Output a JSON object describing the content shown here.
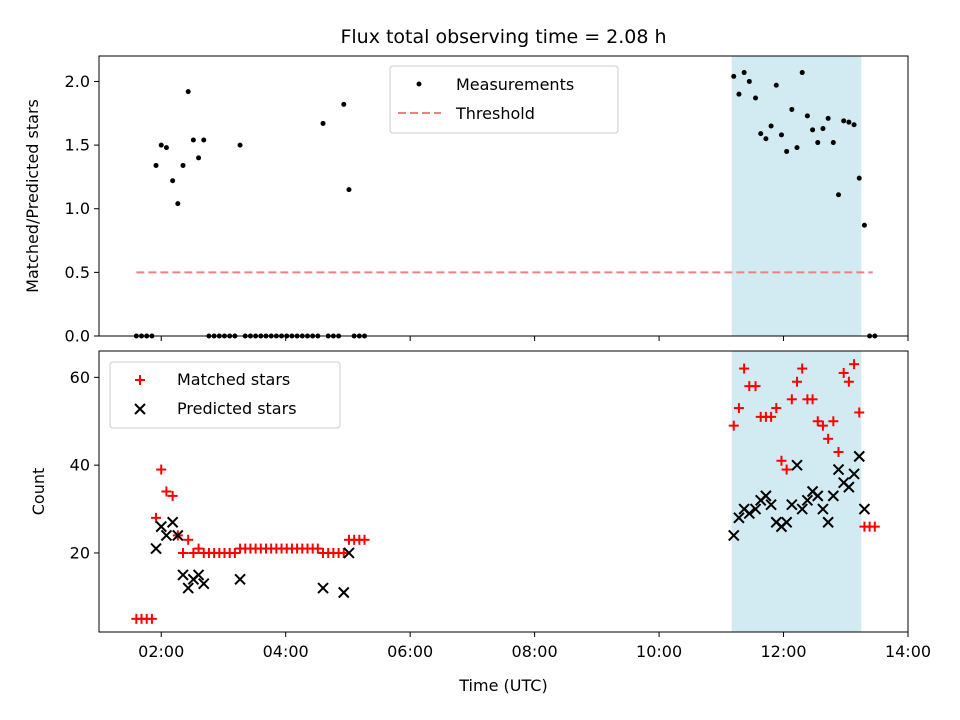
{
  "chart_data": [
    {
      "type": "scatter",
      "title": "Flux total observing time = 2.08 h",
      "ylabel": "Matched/Predicted stars",
      "xlabel": "",
      "xlim": [
        "01:00",
        "14:00"
      ],
      "ylim": [
        0,
        2.2
      ],
      "yticks": [
        0.0,
        0.5,
        1.0,
        1.5,
        2.0
      ],
      "ytick_labels": [
        "0.0",
        "0.5",
        "1.0",
        "1.5",
        "2.0"
      ],
      "legend_position": "top-center",
      "highlight_span": {
        "x": [
          "11:10",
          "13:15"
        ],
        "color": "#add8e6"
      },
      "series": [
        {
          "name": "Measurements",
          "marker": "dot",
          "color": "#000000",
          "points": [
            [
              "01:36",
              0
            ],
            [
              "01:41",
              0
            ],
            [
              "01:46",
              0
            ],
            [
              "01:51",
              0
            ],
            [
              "01:55",
              1.34
            ],
            [
              "02:00",
              1.5
            ],
            [
              "02:05",
              1.48
            ],
            [
              "02:11",
              1.22
            ],
            [
              "02:16",
              1.04
            ],
            [
              "02:21",
              1.34
            ],
            [
              "02:26",
              1.92
            ],
            [
              "02:31",
              1.54
            ],
            [
              "02:36",
              1.4
            ],
            [
              "02:41",
              1.54
            ],
            [
              "02:46",
              0
            ],
            [
              "02:51",
              0
            ],
            [
              "02:56",
              0
            ],
            [
              "03:01",
              0
            ],
            [
              "03:06",
              0
            ],
            [
              "03:11",
              0
            ],
            [
              "03:16",
              1.5
            ],
            [
              "03:21",
              0
            ],
            [
              "03:26",
              0
            ],
            [
              "03:31",
              0
            ],
            [
              "03:36",
              0
            ],
            [
              "03:41",
              0
            ],
            [
              "03:46",
              0
            ],
            [
              "03:51",
              0
            ],
            [
              "03:56",
              0
            ],
            [
              "04:01",
              0
            ],
            [
              "04:06",
              0
            ],
            [
              "04:11",
              0
            ],
            [
              "04:16",
              0
            ],
            [
              "04:21",
              0
            ],
            [
              "04:26",
              0
            ],
            [
              "04:31",
              0
            ],
            [
              "04:36",
              1.67
            ],
            [
              "04:41",
              0
            ],
            [
              "04:46",
              0
            ],
            [
              "04:51",
              0
            ],
            [
              "04:56",
              1.82
            ],
            [
              "05:01",
              1.15
            ],
            [
              "05:06",
              0
            ],
            [
              "05:11",
              0
            ],
            [
              "05:16",
              0
            ],
            [
              "11:12",
              2.04
            ],
            [
              "11:17",
              1.9
            ],
            [
              "11:22",
              2.07
            ],
            [
              "11:27",
              2.0
            ],
            [
              "11:33",
              1.87
            ],
            [
              "11:38",
              1.59
            ],
            [
              "11:43",
              1.55
            ],
            [
              "11:48",
              1.65
            ],
            [
              "11:53",
              1.97
            ],
            [
              "11:58",
              1.58
            ],
            [
              "12:03",
              1.45
            ],
            [
              "12:08",
              1.78
            ],
            [
              "12:13",
              1.48
            ],
            [
              "12:18",
              2.07
            ],
            [
              "12:23",
              1.73
            ],
            [
              "12:28",
              1.62
            ],
            [
              "12:33",
              1.52
            ],
            [
              "12:38",
              1.63
            ],
            [
              "12:43",
              1.71
            ],
            [
              "12:48",
              1.52
            ],
            [
              "12:53",
              1.11
            ],
            [
              "12:58",
              1.69
            ],
            [
              "13:03",
              1.68
            ],
            [
              "13:08",
              1.66
            ],
            [
              "13:13",
              1.24
            ],
            [
              "13:18",
              0.87
            ],
            [
              "13:23",
              0
            ],
            [
              "13:28",
              0
            ]
          ]
        },
        {
          "name": "Threshold",
          "line": "dashed",
          "color": "#f08080",
          "points": [
            [
              "01:36",
              0.5
            ],
            [
              "13:26",
              0.5
            ]
          ]
        }
      ]
    },
    {
      "type": "scatter",
      "title": "",
      "ylabel": "Count",
      "xlabel": "Time (UTC)",
      "xlim": [
        "01:00",
        "14:00"
      ],
      "xticks": [
        "02:00",
        "04:00",
        "06:00",
        "08:00",
        "10:00",
        "12:00",
        "14:00"
      ],
      "ylim": [
        2,
        66
      ],
      "yticks": [
        20,
        40,
        60
      ],
      "ytick_labels": [
        "20",
        "40",
        "60"
      ],
      "legend_position": "top-left",
      "highlight_span": {
        "x": [
          "11:10",
          "13:15"
        ],
        "color": "#add8e6"
      },
      "series": [
        {
          "name": "Matched stars",
          "marker": "plus",
          "color": "#ff0000",
          "points": [
            [
              "01:36",
              5
            ],
            [
              "01:41",
              5
            ],
            [
              "01:46",
              5
            ],
            [
              "01:51",
              5
            ],
            [
              "01:55",
              28
            ],
            [
              "02:00",
              39
            ],
            [
              "02:05",
              34
            ],
            [
              "02:11",
              33
            ],
            [
              "02:16",
              24
            ],
            [
              "02:21",
              20
            ],
            [
              "02:26",
              23
            ],
            [
              "02:31",
              20
            ],
            [
              "02:36",
              21
            ],
            [
              "02:41",
              20
            ],
            [
              "02:46",
              20
            ],
            [
              "02:51",
              20
            ],
            [
              "02:56",
              20
            ],
            [
              "03:01",
              20
            ],
            [
              "03:06",
              20
            ],
            [
              "03:11",
              20
            ],
            [
              "03:16",
              21
            ],
            [
              "03:21",
              21
            ],
            [
              "03:26",
              21
            ],
            [
              "03:31",
              21
            ],
            [
              "03:36",
              21
            ],
            [
              "03:41",
              21
            ],
            [
              "03:46",
              21
            ],
            [
              "03:51",
              21
            ],
            [
              "03:56",
              21
            ],
            [
              "04:01",
              21
            ],
            [
              "04:06",
              21
            ],
            [
              "04:11",
              21
            ],
            [
              "04:16",
              21
            ],
            [
              "04:21",
              21
            ],
            [
              "04:26",
              21
            ],
            [
              "04:31",
              21
            ],
            [
              "04:36",
              20
            ],
            [
              "04:41",
              20
            ],
            [
              "04:46",
              20
            ],
            [
              "04:51",
              20
            ],
            [
              "04:56",
              20
            ],
            [
              "05:01",
              23
            ],
            [
              "05:06",
              23
            ],
            [
              "05:11",
              23
            ],
            [
              "05:16",
              23
            ],
            [
              "11:12",
              49
            ],
            [
              "11:17",
              53
            ],
            [
              "11:22",
              62
            ],
            [
              "11:27",
              58
            ],
            [
              "11:33",
              58
            ],
            [
              "11:38",
              51
            ],
            [
              "11:43",
              51
            ],
            [
              "11:48",
              51
            ],
            [
              "11:53",
              53
            ],
            [
              "11:58",
              41
            ],
            [
              "12:03",
              39
            ],
            [
              "12:08",
              55
            ],
            [
              "12:13",
              59
            ],
            [
              "12:18",
              62
            ],
            [
              "12:23",
              55
            ],
            [
              "12:28",
              55
            ],
            [
              "12:33",
              50
            ],
            [
              "12:38",
              49
            ],
            [
              "12:43",
              46
            ],
            [
              "12:48",
              50
            ],
            [
              "12:53",
              43
            ],
            [
              "12:58",
              61
            ],
            [
              "13:03",
              59
            ],
            [
              "13:08",
              63
            ],
            [
              "13:13",
              52
            ],
            [
              "13:18",
              26
            ],
            [
              "13:23",
              26
            ],
            [
              "13:28",
              26
            ]
          ]
        },
        {
          "name": "Predicted stars",
          "marker": "x",
          "color": "#000000",
          "points": [
            [
              "01:55",
              21
            ],
            [
              "02:00",
              26
            ],
            [
              "02:05",
              24
            ],
            [
              "02:11",
              27
            ],
            [
              "02:16",
              24
            ],
            [
              "02:21",
              15
            ],
            [
              "02:26",
              12
            ],
            [
              "02:31",
              14
            ],
            [
              "02:36",
              15
            ],
            [
              "02:41",
              13
            ],
            [
              "03:16",
              14
            ],
            [
              "04:36",
              12
            ],
            [
              "04:56",
              11
            ],
            [
              "05:01",
              20
            ],
            [
              "11:12",
              24
            ],
            [
              "11:17",
              28
            ],
            [
              "11:22",
              30
            ],
            [
              "11:27",
              29
            ],
            [
              "11:33",
              30
            ],
            [
              "11:38",
              32
            ],
            [
              "11:43",
              33
            ],
            [
              "11:48",
              31
            ],
            [
              "11:53",
              27
            ],
            [
              "11:58",
              26
            ],
            [
              "12:03",
              27
            ],
            [
              "12:08",
              31
            ],
            [
              "12:13",
              40
            ],
            [
              "12:18",
              30
            ],
            [
              "12:23",
              32
            ],
            [
              "12:28",
              34
            ],
            [
              "12:33",
              33
            ],
            [
              "12:38",
              30
            ],
            [
              "12:43",
              27
            ],
            [
              "12:48",
              33
            ],
            [
              "12:53",
              39
            ],
            [
              "12:58",
              36
            ],
            [
              "13:03",
              35
            ],
            [
              "13:08",
              38
            ],
            [
              "13:13",
              42
            ],
            [
              "13:18",
              30
            ]
          ]
        }
      ]
    }
  ]
}
